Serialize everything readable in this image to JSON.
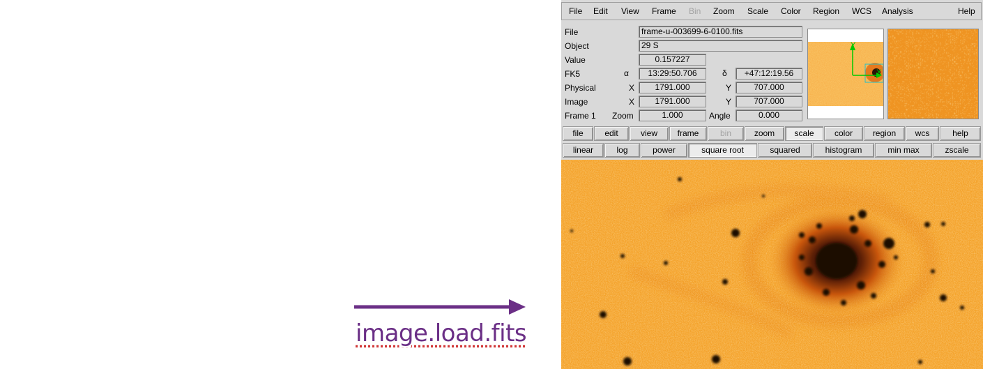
{
  "annotation": {
    "caption": "image.load.fits",
    "arrow_color": "#6b2f86"
  },
  "menubar": {
    "items": [
      "File",
      "Edit",
      "View",
      "Frame",
      "Bin",
      "Zoom",
      "Scale",
      "Color",
      "Region",
      "WCS",
      "Analysis"
    ],
    "disabled": [
      "Bin"
    ],
    "help": "Help"
  },
  "info": {
    "file_label": "File",
    "file_value": "frame-u-003699-6-0100.fits",
    "object_label": "Object",
    "object_value": "29 S",
    "value_label": "Value",
    "value_value": "0.157227",
    "fk5_label": "FK5",
    "alpha_symbol": "α",
    "alpha_value": "13:29:50.706",
    "delta_symbol": "δ",
    "delta_value": "+47:12:19.56",
    "physical_label": "Physical",
    "physical_x_label": "X",
    "physical_x": "1791.000",
    "physical_y_label": "Y",
    "physical_y": "707.000",
    "image_label": "Image",
    "image_x_label": "X",
    "image_x": "1791.000",
    "image_y_label": "Y",
    "image_y": "707.000",
    "frame_label": "Frame 1",
    "zoom_label": "Zoom",
    "zoom_value": "1.000",
    "angle_label": "Angle",
    "angle_value": "0.000"
  },
  "panner": {
    "axis_y": "Y",
    "axis_x": "X",
    "compass_color": "#00c800"
  },
  "buttonbar": {
    "main": [
      "file",
      "edit",
      "view",
      "frame",
      "bin",
      "zoom",
      "scale",
      "color",
      "region",
      "wcs",
      "help"
    ],
    "main_disabled": [
      "bin"
    ],
    "main_active": [
      "scale"
    ],
    "scale": [
      "linear",
      "log",
      "power",
      "square root",
      "squared",
      "histogram",
      "min max",
      "zscale"
    ],
    "scale_active": [
      "square root"
    ]
  },
  "colors": {
    "image_background": "#f4a22a",
    "image_source": "#1a0a04",
    "panel_background": "#d9d9d9"
  }
}
